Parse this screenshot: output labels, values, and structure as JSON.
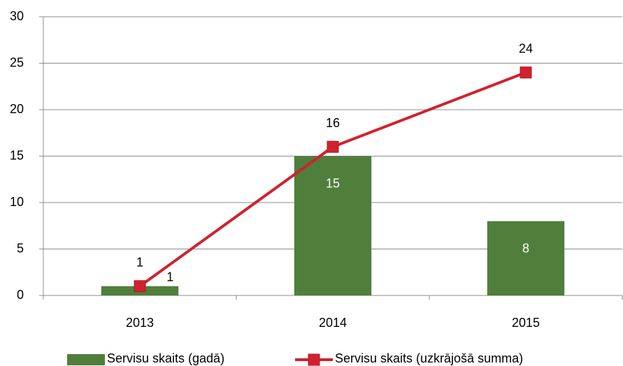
{
  "chart_data": {
    "type": "combo",
    "categories": [
      "2013",
      "2014",
      "2015"
    ],
    "series": [
      {
        "name": "Servisu skaits (gadā)",
        "type": "bar",
        "color": "#4f7f3b",
        "values": [
          1,
          15,
          8
        ]
      },
      {
        "name": "Servisu skaits (uzkrājošā summa)",
        "type": "line",
        "color": "#d0222e",
        "values": [
          1,
          16,
          24
        ]
      }
    ],
    "ylim": [
      0,
      30
    ],
    "yticks": [
      0,
      5,
      10,
      15,
      20,
      25,
      30
    ],
    "grid": true,
    "legend": "bottom"
  }
}
